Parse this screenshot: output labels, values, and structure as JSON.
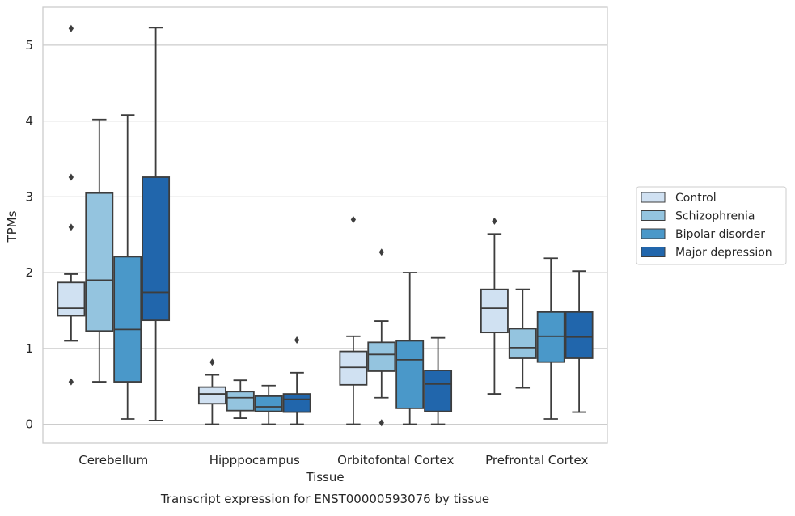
{
  "chart_data": {
    "type": "box",
    "title": "",
    "caption": "Transcript expression for ENST00000593076 by tissue",
    "xlabel": "Tissue",
    "ylabel": "TPMs",
    "ylim": [
      -0.25,
      5.5
    ],
    "yticks": [
      "0",
      "1",
      "2",
      "3",
      "4",
      "5"
    ],
    "grid": "horizontal",
    "legend_position": "right",
    "categories": [
      "Cerebellum",
      "Hipppocampus",
      "Orbitofontal Cortex",
      "Prefrontal Cortex"
    ],
    "series": [
      {
        "name": "Control",
        "color": "#d0e1f2",
        "boxes": [
          {
            "whislo": 1.1,
            "q1": 1.43,
            "med": 1.53,
            "q3": 1.87,
            "whishi": 1.98,
            "fliers": [
              5.22,
              3.26,
              2.6,
              0.56
            ]
          },
          {
            "whislo": 0.0,
            "q1": 0.27,
            "med": 0.4,
            "q3": 0.49,
            "whishi": 0.65,
            "fliers": [
              0.82
            ]
          },
          {
            "whislo": 0.0,
            "q1": 0.52,
            "med": 0.75,
            "q3": 0.96,
            "whishi": 1.16,
            "fliers": [
              2.7
            ]
          },
          {
            "whislo": 0.4,
            "q1": 1.21,
            "med": 1.53,
            "q3": 1.78,
            "whishi": 2.51,
            "fliers": [
              2.68
            ]
          }
        ]
      },
      {
        "name": "Schizophrenia",
        "color": "#94c4df",
        "boxes": [
          {
            "whislo": 0.56,
            "q1": 1.23,
            "med": 1.9,
            "q3": 3.05,
            "whishi": 4.02,
            "fliers": []
          },
          {
            "whislo": 0.08,
            "q1": 0.18,
            "med": 0.35,
            "q3": 0.43,
            "whishi": 0.58,
            "fliers": []
          },
          {
            "whislo": 0.35,
            "q1": 0.7,
            "med": 0.92,
            "q3": 1.08,
            "whishi": 1.36,
            "fliers": [
              2.27,
              0.02
            ]
          },
          {
            "whislo": 0.48,
            "q1": 0.87,
            "med": 1.01,
            "q3": 1.26,
            "whishi": 1.78,
            "fliers": []
          }
        ]
      },
      {
        "name": "Bipolar disorder",
        "color": "#4a98c9",
        "boxes": [
          {
            "whislo": 0.07,
            "q1": 0.56,
            "med": 1.25,
            "q3": 2.21,
            "whishi": 4.08,
            "fliers": []
          },
          {
            "whislo": 0.0,
            "q1": 0.17,
            "med": 0.23,
            "q3": 0.37,
            "whishi": 0.51,
            "fliers": []
          },
          {
            "whislo": 0.0,
            "q1": 0.21,
            "med": 0.85,
            "q3": 1.1,
            "whishi": 2.0,
            "fliers": []
          },
          {
            "whislo": 0.07,
            "q1": 0.82,
            "med": 1.16,
            "q3": 1.48,
            "whishi": 2.19,
            "fliers": []
          }
        ]
      },
      {
        "name": "Major depression",
        "color": "#2166ac",
        "boxes": [
          {
            "whislo": 0.05,
            "q1": 1.37,
            "med": 1.74,
            "q3": 3.26,
            "whishi": 5.23,
            "fliers": []
          },
          {
            "whislo": 0.0,
            "q1": 0.16,
            "med": 0.33,
            "q3": 0.4,
            "whishi": 0.68,
            "fliers": [
              1.11
            ]
          },
          {
            "whislo": 0.0,
            "q1": 0.17,
            "med": 0.53,
            "q3": 0.71,
            "whishi": 1.14,
            "fliers": []
          },
          {
            "whislo": 0.16,
            "q1": 0.87,
            "med": 1.15,
            "q3": 1.48,
            "whishi": 2.02,
            "fliers": []
          }
        ]
      }
    ]
  }
}
